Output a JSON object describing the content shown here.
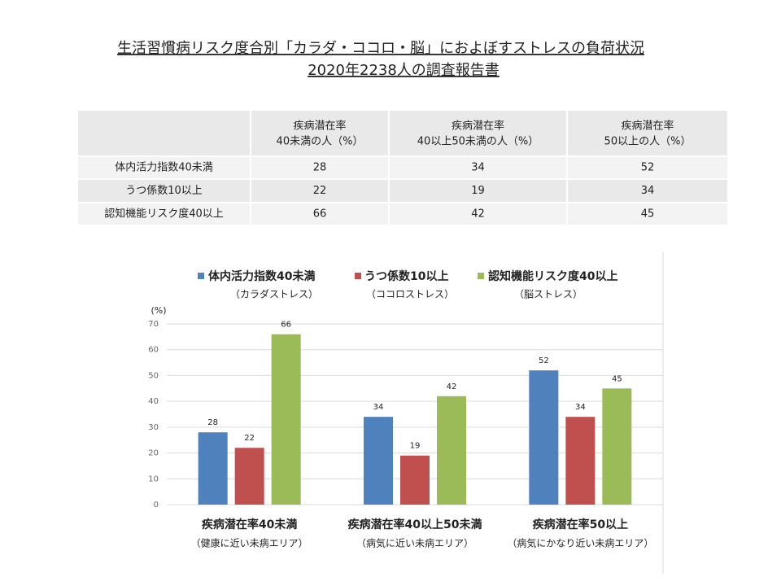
{
  "title": [
    "生活習慣病リスク度合別「カラダ・ココロ・脳」におよぼすストレスの負荷状況",
    "2020年2238人の調査報告書"
  ],
  "table": {
    "header": [
      [
        "疾病潜在率",
        "40未満の人（%）"
      ],
      [
        "疾病潜在率",
        "40以上50未満の人（%）"
      ],
      [
        "疾病潜在率",
        "50以上の人（%）"
      ]
    ],
    "rows": [
      [
        "体内活力指数40未満",
        28,
        34,
        52
      ],
      [
        "うつ係数10以上",
        22,
        19,
        34
      ],
      [
        "認知機能リスク度40以上",
        66,
        42,
        45
      ]
    ]
  },
  "chart_data": {
    "type": "bar",
    "y_label": "(%)",
    "categories": [
      "疾病潜在率40未満",
      "疾病潜在率40以上50未満",
      "疾病潜在率50以上"
    ],
    "category_notes": [
      "（健康に近い未病エリア）",
      "（病気に近い未病エリア）",
      "（病気にかなり近い未病エリア）"
    ],
    "series": [
      {
        "name": "体内活力指数40未満",
        "note": "（カラダストレス）",
        "color": "#4f81bd",
        "values": [
          28,
          34,
          52
        ]
      },
      {
        "name": "うつ係数10以上",
        "note": "（ココロストレス）",
        "color": "#c0504d",
        "values": [
          22,
          19,
          34
        ]
      },
      {
        "name": "認知機能リスク度40以上",
        "note": "（脳ストレス）",
        "color": "#9bbb59",
        "values": [
          66,
          42,
          45
        ]
      }
    ],
    "ylim": [
      0,
      70
    ],
    "yticks": [
      0,
      10,
      20,
      30,
      40,
      50,
      60,
      70
    ],
    "grid": true
  }
}
